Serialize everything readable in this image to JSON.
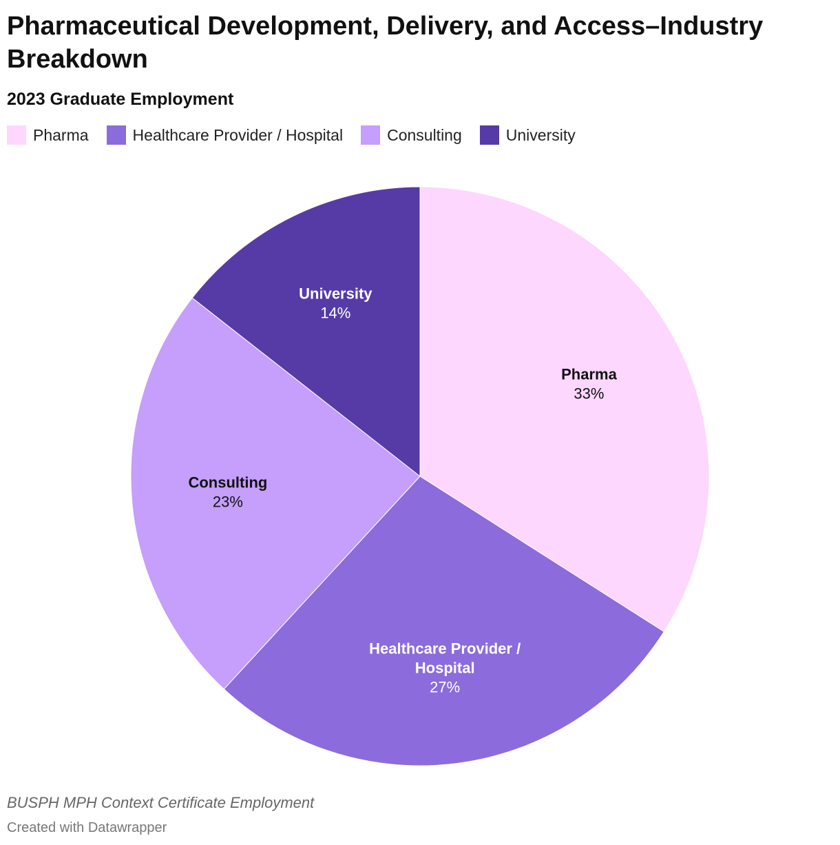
{
  "header": {
    "title": "Pharmaceutical Development, Delivery, and Access–Industry Breakdown",
    "subtitle": "2023 Graduate Employment"
  },
  "footer": {
    "notes": "BUSPH MPH Context Certificate Employment",
    "credit": "Created with Datawrapper"
  },
  "chart_data": {
    "type": "pie",
    "title": "Pharmaceutical Development, Delivery, and Access–Industry Breakdown",
    "subtitle": "2023 Graduate Employment",
    "legend_position": "top-left",
    "start_angle_deg": 0,
    "direction": "clockwise",
    "slices": [
      {
        "label": "Pharma",
        "label_lines": [
          "Pharma"
        ],
        "value": 33,
        "value_label": "33%",
        "color": "#fdd7fd",
        "text_color": "#111111"
      },
      {
        "label": "Healthcare Provider / Hospital",
        "label_lines": [
          "Healthcare Provider /",
          "Hospital"
        ],
        "value": 27,
        "value_label": "27%",
        "color": "#8c6bdc",
        "text_color": "#ffffff"
      },
      {
        "label": "Consulting",
        "label_lines": [
          "Consulting"
        ],
        "value": 23,
        "value_label": "23%",
        "color": "#c59ffb",
        "text_color": "#111111"
      },
      {
        "label": "University",
        "label_lines": [
          "University"
        ],
        "value": 14,
        "value_label": "14%",
        "color": "#563ba7",
        "text_color": "#ffffff"
      }
    ]
  }
}
